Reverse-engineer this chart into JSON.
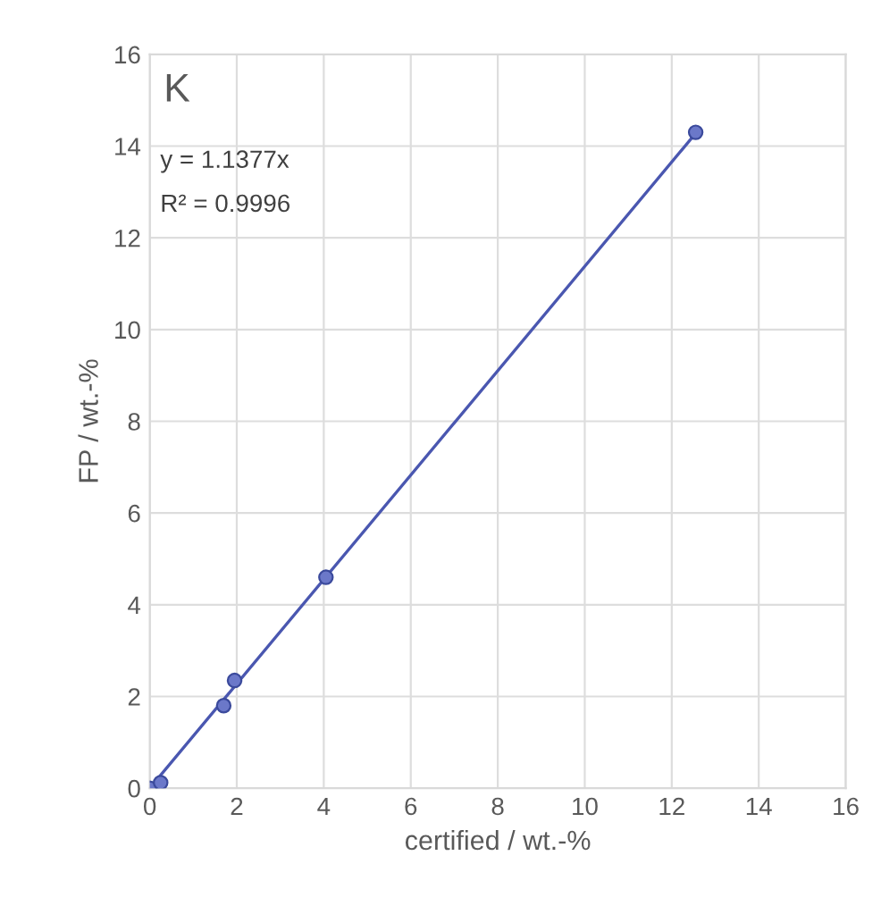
{
  "chart_data": {
    "type": "scatter",
    "xlabel": "certified / wt.-%",
    "ylabel": "FP / wt.-%",
    "annotations": [
      "K",
      "y = 1.1377x",
      "R² = 0.9996"
    ],
    "series": [
      {
        "color": "#6b78c9",
        "x": [
          0.0,
          0.05,
          0.15,
          0.25,
          1.7,
          1.95,
          4.05,
          12.55
        ],
        "values": [
          0.0,
          null,
          null,
          0.12,
          1.8,
          2.35,
          4.6,
          14.3
        ],
        "marker": "circle"
      },
      {
        "type": "line",
        "color": "#4a57b0",
        "x": [
          0,
          12.55
        ],
        "values": [
          0,
          14.28
        ],
        "marker": "none",
        "line_style": "solid"
      }
    ],
    "xlim": [
      0,
      16
    ],
    "xticks": [
      0,
      2,
      4,
      6,
      8,
      10,
      12,
      14,
      16
    ],
    "ylim": [
      0,
      16
    ],
    "yticks": [
      0,
      2,
      4,
      6,
      8,
      10,
      12,
      14,
      16
    ],
    "grid": true
  }
}
